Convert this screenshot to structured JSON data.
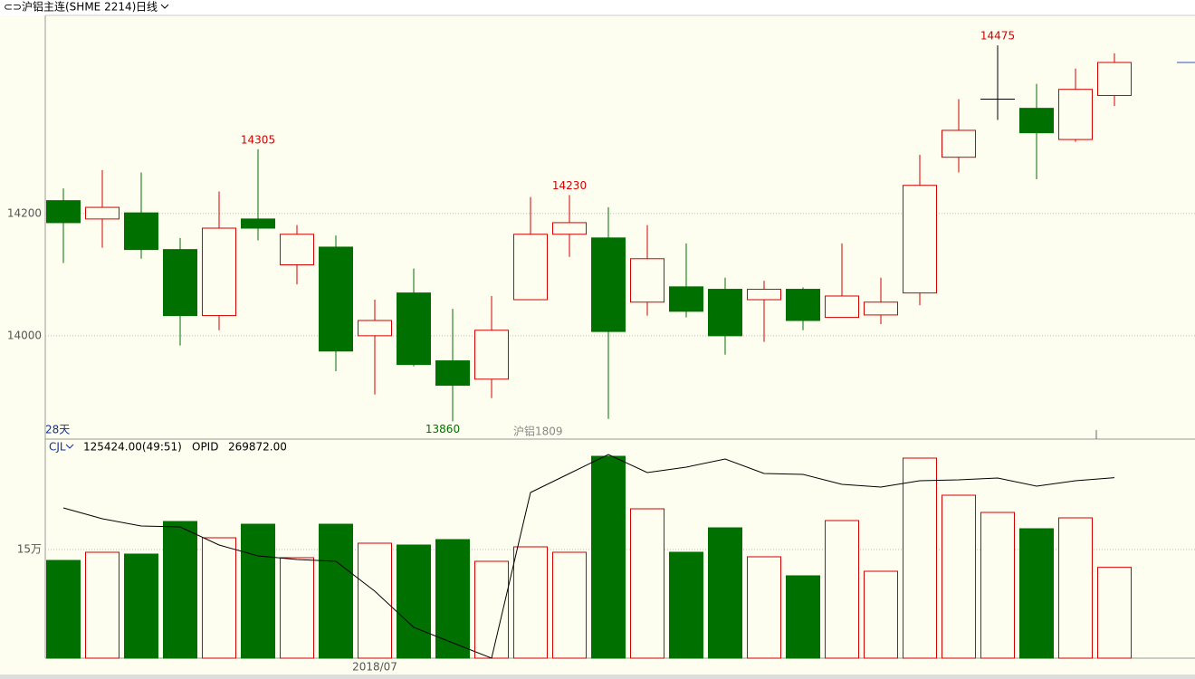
{
  "header": {
    "title": "沪铝主连(SHME 2214)",
    "period": "日线"
  },
  "chart_data": [
    {
      "type": "candlestick",
      "range_label": "28天",
      "contract_label": "沪铝1809",
      "categories": [
        null,
        null,
        null,
        null,
        null,
        null,
        null,
        null,
        "2018/07",
        null,
        null,
        null,
        null,
        null,
        null,
        null,
        null,
        null,
        null,
        null,
        null,
        null,
        null,
        null,
        null,
        null,
        null,
        null
      ],
      "open": [
        14221,
        14191,
        14201,
        14141,
        14033,
        14191,
        14116,
        14145,
        14000,
        14070,
        13959,
        13929,
        14059,
        14166,
        14160,
        14055,
        14080,
        14076,
        14059,
        14076,
        14030,
        14034,
        14070,
        14292,
        14387,
        14372,
        14321,
        14393
      ],
      "high": [
        14241,
        14271,
        14267,
        14160,
        14236,
        14305,
        14181,
        14164,
        14059,
        14110,
        14044,
        14065,
        14227,
        14230,
        14210,
        14181,
        14151,
        14095,
        14090,
        14079,
        14151,
        14095,
        14296,
        14387,
        14475,
        14412,
        14437,
        14462
      ],
      "low": [
        14119,
        14144,
        14126,
        13984,
        14009,
        14156,
        14084,
        13942,
        13904,
        13950,
        13860,
        13898,
        14059,
        14129,
        13864,
        14033,
        14030,
        13969,
        13990,
        14009,
        14030,
        14019,
        14050,
        14267,
        14353,
        14256,
        14317,
        14376
      ],
      "close": [
        14185,
        14210,
        14141,
        14033,
        14176,
        14176,
        14166,
        13975,
        14025,
        13953,
        13919,
        14009,
        14166,
        14185,
        14007,
        14126,
        14040,
        14000,
        14076,
        14025,
        14065,
        14055,
        14246,
        14336,
        14387,
        14332,
        14403,
        14447
      ],
      "labeled_highs": [
        5,
        13,
        24
      ],
      "labeled_lows": [
        10
      ],
      "up_color": "#d40000",
      "down_color": "#007000",
      "flat_color": "#000000",
      "ylim": [
        13831,
        14524
      ],
      "yticks": [
        14000,
        14200
      ],
      "grid": true
    },
    {
      "type": "bar",
      "name": "CJL",
      "last_label": "125424.00(49:51)",
      "categories": [
        null,
        null,
        null,
        null,
        null,
        null,
        null,
        null,
        "2018/07",
        null,
        null,
        null,
        null,
        null,
        null,
        null,
        null,
        null,
        null,
        null,
        null,
        null,
        null,
        null,
        null,
        null,
        null,
        null
      ],
      "values": [
        135000,
        146250,
        143750,
        188750,
        166250,
        185000,
        138750,
        185000,
        158750,
        156250,
        163750,
        133750,
        153750,
        146250,
        278750,
        206250,
        146250,
        180000,
        140000,
        113750,
        190000,
        120000,
        276250,
        225000,
        201250,
        178750,
        193750,
        125424
      ],
      "ylim": [
        0,
        300000
      ],
      "yticks": [
        {
          "value": 150000,
          "label": "15万"
        }
      ],
      "grid": true,
      "line": {
        "name": "OPID",
        "last_label": "269872.00",
        "color": "#000000",
        "axis": "y2",
        "values": [
          263200,
          260800,
          259200,
          259000,
          255000,
          252600,
          251800,
          251400,
          244800,
          236800,
          233400,
          230000,
          266600,
          270800,
          275000,
          271000,
          272200,
          274000,
          270800,
          270600,
          268400,
          267800,
          269200,
          269400,
          269800,
          268000,
          269200,
          269872
        ]
      },
      "y2lim": [
        230000,
        278000
      ]
    }
  ]
}
